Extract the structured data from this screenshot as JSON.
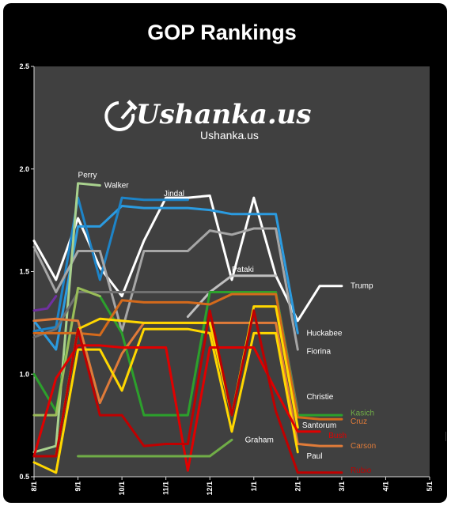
{
  "chart_data": {
    "type": "line",
    "title": "GOP Rankings",
    "xlabel": "",
    "ylabel": "",
    "ylim": [
      0.5,
      2.5
    ],
    "yticks": [
      "0.5",
      "1.0",
      "1.5",
      "2.0",
      "2.5"
    ],
    "xticks": [
      "8/1",
      "9/1",
      "10/1",
      "11/1",
      "12/1",
      "1/1",
      "2/1",
      "3/1",
      "4/1",
      "5/1"
    ],
    "grid": false,
    "watermark": {
      "logo": "Ushanka.us",
      "text": "Ushanka.us"
    },
    "series": [
      {
        "name": "Trump",
        "color": "#ffffff",
        "points": [
          [
            0,
            1.65
          ],
          [
            0.5,
            1.46
          ],
          [
            1,
            1.76
          ],
          [
            1.5,
            1.52
          ],
          [
            2,
            1.38
          ],
          [
            2.5,
            1.65
          ],
          [
            3,
            1.86
          ],
          [
            3.5,
            1.86
          ],
          [
            4,
            1.87
          ],
          [
            4.5,
            1.46
          ],
          [
            5,
            1.86
          ],
          [
            5.5,
            1.48
          ],
          [
            6,
            1.26
          ],
          [
            6.5,
            1.43
          ],
          [
            7,
            1.43
          ]
        ]
      },
      {
        "name": "Huckabee",
        "color": "#2b9be0",
        "points": [
          [
            0,
            1.26
          ],
          [
            0.5,
            1.12
          ],
          [
            1,
            1.72
          ],
          [
            1.5,
            1.72
          ],
          [
            2,
            1.82
          ],
          [
            2.5,
            1.81
          ],
          [
            3,
            1.81
          ],
          [
            3.5,
            1.81
          ],
          [
            4,
            1.8
          ],
          [
            4.5,
            1.78
          ],
          [
            5,
            1.78
          ],
          [
            5.5,
            1.78
          ],
          [
            6,
            1.2
          ]
        ]
      },
      {
        "name": "Jindal",
        "color": "#1d84c8",
        "points": [
          [
            0,
            1.21
          ],
          [
            0.5,
            1.23
          ],
          [
            1,
            1.86
          ],
          [
            1.5,
            1.46
          ],
          [
            2,
            1.86
          ],
          [
            2.5,
            1.85
          ],
          [
            3,
            1.85
          ],
          [
            3.5,
            1.85
          ]
        ]
      },
      {
        "name": "Fiorina",
        "color": "#a6a6a6",
        "points": [
          [
            0,
            1.62
          ],
          [
            0.5,
            1.4
          ],
          [
            1,
            1.6
          ],
          [
            1.5,
            1.6
          ],
          [
            2,
            1.21
          ],
          [
            2.5,
            1.6
          ],
          [
            3,
            1.6
          ],
          [
            3.5,
            1.6
          ],
          [
            4,
            1.7
          ],
          [
            4.5,
            1.68
          ],
          [
            5,
            1.71
          ],
          [
            5.5,
            1.71
          ],
          [
            6,
            1.12
          ]
        ]
      },
      {
        "name": "Pataki",
        "color": "#bfbfbf",
        "points": [
          [
            3.5,
            1.28
          ],
          [
            4,
            1.4
          ],
          [
            4.5,
            1.48
          ],
          [
            5,
            1.48
          ],
          [
            5.5,
            1.48
          ]
        ]
      },
      {
        "name": "Perry",
        "color": "#a9d18e",
        "points": [
          [
            0,
            0.62
          ],
          [
            0.5,
            0.65
          ],
          [
            1,
            1.93
          ],
          [
            1.5,
            1.92
          ]
        ]
      },
      {
        "name": "Christie",
        "color": "#707070",
        "points": [
          [
            0,
            1.18
          ],
          [
            0.5,
            1.22
          ],
          [
            1,
            1.4
          ],
          [
            1.5,
            1.4
          ],
          [
            2,
            1.4
          ],
          [
            2.5,
            1.4
          ],
          [
            3,
            1.4
          ],
          [
            3.5,
            1.4
          ],
          [
            4,
            1.4
          ],
          [
            4.5,
            1.4
          ],
          [
            5,
            1.4
          ],
          [
            5.5,
            1.4
          ],
          [
            6,
            0.82
          ]
        ]
      },
      {
        "name": "Kasich",
        "color": "#2ca02c",
        "points": [
          [
            0,
            1.0
          ],
          [
            0.5,
            0.82
          ],
          [
            1,
            1.42
          ],
          [
            1.5,
            1.38
          ],
          [
            2,
            1.2
          ],
          [
            2.5,
            0.8
          ],
          [
            3,
            0.8
          ],
          [
            3.5,
            0.8
          ],
          [
            4,
            1.4
          ],
          [
            4.5,
            1.4
          ],
          [
            5,
            1.4
          ],
          [
            5.5,
            1.4
          ],
          [
            6,
            0.8
          ],
          [
            6.5,
            0.8
          ],
          [
            7,
            0.8
          ]
        ]
      },
      {
        "name": "Walker",
        "color": "#9bbb59",
        "points": [
          [
            0,
            0.8
          ],
          [
            0.5,
            0.8
          ],
          [
            1,
            1.42
          ],
          [
            1.5,
            1.38
          ]
        ]
      },
      {
        "name": "Cruz",
        "color": "#d46a1c",
        "points": [
          [
            0,
            1.2
          ],
          [
            0.5,
            1.2
          ],
          [
            1,
            1.2
          ],
          [
            1.5,
            1.19
          ],
          [
            2,
            1.36
          ],
          [
            2.5,
            1.35
          ],
          [
            3,
            1.35
          ],
          [
            3.5,
            1.35
          ],
          [
            4,
            1.34
          ],
          [
            4.5,
            1.39
          ],
          [
            5,
            1.39
          ],
          [
            5.5,
            1.39
          ],
          [
            6,
            0.79
          ],
          [
            6.5,
            0.78
          ],
          [
            7,
            0.78
          ]
        ]
      },
      {
        "name": "Carson",
        "color": "#e07b39",
        "points": [
          [
            0,
            1.26
          ],
          [
            0.5,
            1.27
          ],
          [
            1,
            1.26
          ],
          [
            1.5,
            0.86
          ],
          [
            2,
            1.1
          ],
          [
            2.5,
            1.25
          ],
          [
            3,
            1.25
          ],
          [
            3.5,
            1.25
          ],
          [
            4,
            1.25
          ],
          [
            4.5,
            1.25
          ],
          [
            5,
            1.25
          ],
          [
            5.5,
            1.25
          ],
          [
            6,
            0.66
          ],
          [
            6.5,
            0.65
          ],
          [
            7,
            0.65
          ]
        ]
      },
      {
        "name": "Santorum",
        "color": "#ffd700",
        "points": [
          [
            0,
            0.6
          ],
          [
            0.5,
            0.6
          ],
          [
            1,
            1.22
          ],
          [
            1.5,
            1.27
          ],
          [
            2,
            1.26
          ],
          [
            2.5,
            1.25
          ],
          [
            3,
            1.25
          ],
          [
            3.5,
            1.25
          ],
          [
            4,
            1.25
          ],
          [
            4.5,
            0.8
          ],
          [
            5,
            1.33
          ],
          [
            5.5,
            1.33
          ],
          [
            6,
            0.74
          ]
        ]
      },
      {
        "name": "Paul",
        "color": "#ffd700",
        "points": [
          [
            0,
            0.57
          ],
          [
            0.5,
            0.52
          ],
          [
            1,
            1.12
          ],
          [
            1.5,
            1.12
          ],
          [
            2,
            0.92
          ],
          [
            2.5,
            1.22
          ],
          [
            3,
            1.22
          ],
          [
            3.5,
            1.22
          ],
          [
            4,
            1.2
          ],
          [
            4.5,
            0.72
          ],
          [
            5,
            1.2
          ],
          [
            5.5,
            1.2
          ],
          [
            6,
            0.62
          ]
        ]
      },
      {
        "name": "Bush",
        "color": "#e00000",
        "points": [
          [
            0,
            0.6
          ],
          [
            0.5,
            0.98
          ],
          [
            1,
            1.14
          ],
          [
            1.5,
            1.14
          ],
          [
            2,
            1.13
          ],
          [
            2.5,
            1.13
          ],
          [
            3,
            1.13
          ],
          [
            3.5,
            0.53
          ],
          [
            4,
            1.13
          ],
          [
            4.5,
            1.13
          ],
          [
            5,
            1.13
          ],
          [
            5.5,
            0.92
          ],
          [
            6,
            0.72
          ],
          [
            6.5,
            0.72
          ]
        ]
      },
      {
        "name": "Rubio",
        "color": "#c00000",
        "points": [
          [
            0,
            0.6
          ],
          [
            0.5,
            0.6
          ],
          [
            1,
            1.22
          ],
          [
            1.5,
            0.8
          ],
          [
            2,
            0.8
          ],
          [
            2.5,
            0.65
          ],
          [
            3,
            0.66
          ],
          [
            3.5,
            0.66
          ],
          [
            4,
            1.31
          ],
          [
            4.5,
            0.8
          ],
          [
            5,
            1.31
          ],
          [
            5.5,
            0.82
          ],
          [
            6,
            0.52
          ],
          [
            6.5,
            0.52
          ],
          [
            7,
            0.52
          ]
        ]
      },
      {
        "name": "Graham",
        "color": "#70ad47",
        "points": [
          [
            1,
            0.6
          ],
          [
            1.5,
            0.6
          ],
          [
            2,
            0.6
          ],
          [
            2.5,
            0.6
          ],
          [
            3,
            0.6
          ],
          [
            3.5,
            0.6
          ],
          [
            4,
            0.6
          ],
          [
            4.5,
            0.68
          ]
        ]
      },
      {
        "name": "",
        "color": "#7030a0",
        "points": [
          [
            0,
            1.31
          ],
          [
            0.3,
            1.32
          ],
          [
            0.5,
            1.38
          ]
        ]
      }
    ],
    "labels": [
      {
        "text": "Perry",
        "color": "#ffffff",
        "x": 1,
        "y": 1.97
      },
      {
        "text": "Walker",
        "color": "#ffffff",
        "x": 1.6,
        "y": 1.92
      },
      {
        "text": "Jindal",
        "color": "#ffffff",
        "x": 2.95,
        "y": 1.88
      },
      {
        "text": "Trump",
        "color": "#ffffff",
        "x": 7.2,
        "y": 1.43
      },
      {
        "text": "Pataki",
        "color": "#ffffff",
        "x": 4.5,
        "y": 1.51
      },
      {
        "text": "Huckabee",
        "color": "#ffffff",
        "x": 6.2,
        "y": 1.2
      },
      {
        "text": "Fiorina",
        "color": "#ffffff",
        "x": 6.2,
        "y": 1.11
      },
      {
        "text": "Christie",
        "color": "#ffffff",
        "x": 6.2,
        "y": 0.89
      },
      {
        "text": "Kasich",
        "color": "#70ad47",
        "x": 7.2,
        "y": 0.81
      },
      {
        "text": "Cruz",
        "color": "#e07b39",
        "x": 7.2,
        "y": 0.77
      },
      {
        "text": "Santorum",
        "color": "#ffffff",
        "x": 6.1,
        "y": 0.75
      },
      {
        "text": "Bush",
        "color": "#e00000",
        "x": 6.7,
        "y": 0.7
      },
      {
        "text": "Carson",
        "color": "#e07b39",
        "x": 7.2,
        "y": 0.65
      },
      {
        "text": "Graham",
        "color": "#ffffff",
        "x": 4.8,
        "y": 0.68
      },
      {
        "text": "Paul",
        "color": "#ffffff",
        "x": 6.2,
        "y": 0.6
      },
      {
        "text": "Rubio",
        "color": "#c00000",
        "x": 7.2,
        "y": 0.53
      }
    ]
  }
}
